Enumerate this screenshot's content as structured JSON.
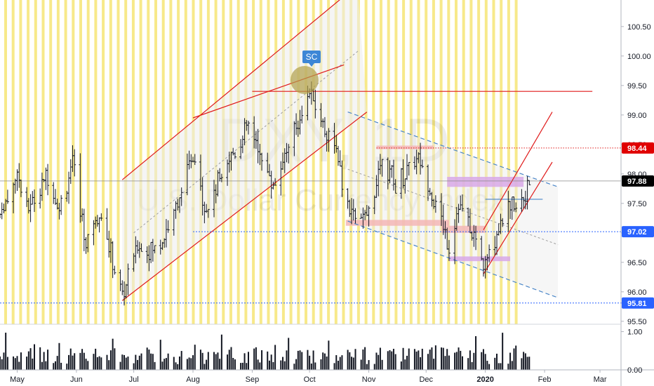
{
  "watermark": {
    "symbol": "DXY, 1D",
    "name": "U.S. Dollar Currency Index"
  },
  "sc_label": "SC",
  "chart_data": {
    "type": "ohlc",
    "price_axis": {
      "range": [
        95.45,
        100.95
      ],
      "ticks": [
        "95.50",
        "96.00",
        "96.50",
        "97.00",
        "97.50",
        "98.00",
        "98.50",
        "99.00",
        "99.50",
        "100.00",
        "100.50"
      ]
    },
    "volume_axis": {
      "ticks": [
        "0.00",
        "1.00"
      ],
      "max": 1.12
    },
    "time_axis": {
      "start": "2019-04-22",
      "end": "2020-03-12",
      "labels": [
        "May",
        "Jun",
        "Jul",
        "Aug",
        "Sep",
        "Oct",
        "Nov",
        "Dec",
        "2020",
        "Feb",
        "Mar"
      ]
    },
    "price_tags": [
      {
        "value": "98.44",
        "color": "#e00000"
      },
      {
        "value": "97.88",
        "color": "#000000"
      },
      {
        "value": "97.02",
        "color": "#2962ff"
      },
      {
        "value": "95.81",
        "color": "#2962ff"
      }
    ],
    "series_path": [
      [
        "2019-04-22",
        97.3
      ],
      [
        "2019-05-01",
        98.0
      ],
      [
        "2019-05-07",
        97.4
      ],
      [
        "2019-05-17",
        98.0
      ],
      [
        "2019-05-23",
        97.4
      ],
      [
        "2019-05-30",
        98.2
      ],
      [
        "2019-06-06",
        96.8
      ],
      [
        "2019-06-13",
        97.4
      ],
      [
        "2019-06-25",
        95.9
      ],
      [
        "2019-07-03",
        96.8
      ],
      [
        "2019-07-12",
        96.7
      ],
      [
        "2019-07-22",
        97.3
      ],
      [
        "2019-08-01",
        98.3
      ],
      [
        "2019-08-08",
        97.4
      ],
      [
        "2019-08-19",
        98.2
      ],
      [
        "2019-08-30",
        98.8
      ],
      [
        "2019-09-12",
        97.8
      ],
      [
        "2019-09-24",
        98.8
      ],
      [
        "2019-10-01",
        99.4
      ],
      [
        "2019-10-07",
        98.9
      ],
      [
        "2019-10-14",
        98.5
      ],
      [
        "2019-10-21",
        97.4
      ],
      [
        "2019-10-31",
        97.2
      ],
      [
        "2019-11-08",
        98.3
      ],
      [
        "2019-11-15",
        97.8
      ],
      [
        "2019-11-26",
        98.3
      ],
      [
        "2019-12-05",
        97.6
      ],
      [
        "2019-12-13",
        96.8
      ],
      [
        "2019-12-18",
        97.5
      ],
      [
        "2019-12-31",
        96.5
      ],
      [
        "2020-01-02",
        96.6
      ],
      [
        "2020-01-10",
        97.3
      ],
      [
        "2020-01-21",
        97.6
      ],
      [
        "2020-01-24",
        97.9
      ]
    ],
    "drawings": {
      "channel_red_upper": {
        "from": [
          "2019-06-25",
          97.9
        ],
        "to": [
          "2019-10-26",
          101.2
        ]
      },
      "channel_red_lower": {
        "from": [
          "2019-06-25",
          95.85
        ],
        "to": [
          "2019-10-31",
          99.05
        ]
      },
      "channel_mid": {
        "from": [
          "2019-07-01",
          97.0
        ],
        "to": [
          "2019-10-27",
          100.1
        ]
      },
      "upper_wedge_line": {
        "from": [
          "2019-08-01",
          98.95
        ],
        "to": [
          "2019-10-19",
          99.85
        ]
      },
      "resistance_red": {
        "from": [
          "2019-09-01",
          99.4
        ],
        "to": [
          "2020-02-26",
          99.4
        ]
      },
      "level_98_44": {
        "from": [
          "2019-11-05",
          98.44
        ],
        "to": [
          "2020-03-26",
          98.44
        ]
      },
      "level_97_02": {
        "from": [
          "2019-08-01",
          97.02
        ],
        "to": [
          "2020-03-26",
          97.02
        ]
      },
      "level_95_81": {
        "from": [
          "2019-04-22",
          95.81
        ],
        "to": [
          "2020-03-26",
          95.81
        ]
      },
      "blue_dashed_upper": {
        "from": [
          "2019-10-21",
          99.05
        ],
        "to": [
          "2020-02-08",
          97.78
        ]
      },
      "blue_dashed_lower": {
        "from": [
          "2019-10-21",
          97.2
        ],
        "to": [
          "2020-02-08",
          95.9
        ]
      },
      "gray_dashed_mid": {
        "from": [
          "2019-10-21",
          98.08
        ],
        "to": [
          "2020-02-08",
          96.8
        ]
      },
      "short_blue_line": {
        "from": [
          "2020-01-01",
          97.57
        ],
        "to": [
          "2020-01-31",
          97.57
        ]
      },
      "red_channel2_upper": {
        "from": [
          "2019-12-31",
          97.05
        ],
        "to": [
          "2020-02-05",
          99.05
        ]
      },
      "red_channel2_lower": {
        "from": [
          "2019-12-31",
          96.3
        ],
        "to": [
          "2020-02-05",
          98.2
        ]
      },
      "zones": [
        {
          "t1": "2019-10-20",
          "t2": "2019-12-13",
          "p1": 97.12,
          "p2": 97.22,
          "color": "#f3b6b6"
        },
        {
          "t1": "2019-12-09",
          "t2": "2020-01-01",
          "p1": 97.0,
          "p2": 97.12,
          "color": "#f3b6b6"
        },
        {
          "t1": "2019-12-12",
          "t2": "2020-01-21",
          "p1": 97.78,
          "p2": 97.95,
          "color": "#d8a8e8"
        },
        {
          "t1": "2019-12-13",
          "t2": "2020-01-14",
          "p1": 96.52,
          "p2": 96.6,
          "color": "#d8a8e8"
        },
        {
          "t1": "2019-11-05",
          "t2": "2019-12-05",
          "p1": 98.42,
          "p2": 98.48,
          "color": "#f3b6b6"
        }
      ]
    }
  }
}
